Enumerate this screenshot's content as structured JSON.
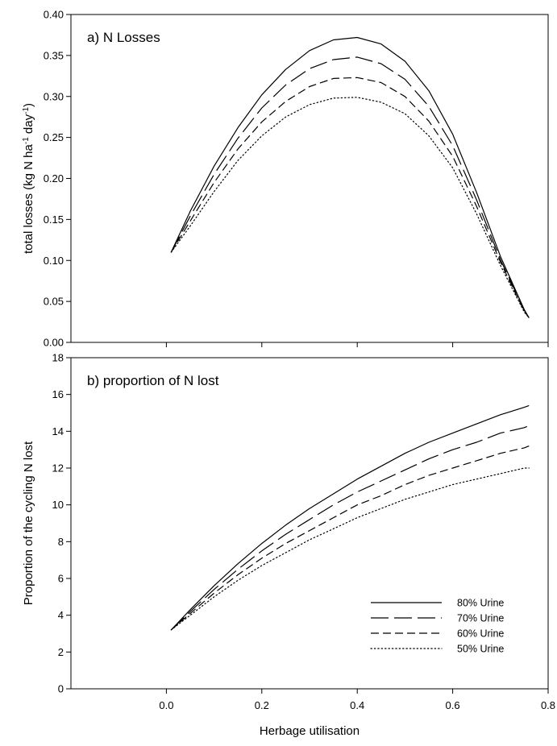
{
  "figure": {
    "xlabel": "Herbage utilisation"
  },
  "chart_data": [
    {
      "type": "line",
      "title": "a) N Losses",
      "xlabel": "Herbage utilisation",
      "ylabel_prefix": "total losses (kg N ha",
      "ylabel_sup1": "-1",
      "ylabel_mid": " day",
      "ylabel_sup2": "-1",
      "ylabel_suffix": ")",
      "xlim": [
        -0.2,
        0.8
      ],
      "ylim": [
        0,
        0.4
      ],
      "xticks": [
        0.0,
        0.2,
        0.4,
        0.6,
        0.8
      ],
      "yticks": [
        0.0,
        0.05,
        0.1,
        0.15,
        0.2,
        0.25,
        0.3,
        0.35,
        0.4
      ],
      "ytick_labels": [
        "0.00",
        "0.05",
        "0.10",
        "0.15",
        "0.20",
        "0.25",
        "0.30",
        "0.35",
        "0.40"
      ],
      "grid": false,
      "x": [
        0.01,
        0.05,
        0.1,
        0.15,
        0.2,
        0.25,
        0.3,
        0.35,
        0.4,
        0.45,
        0.5,
        0.55,
        0.6,
        0.65,
        0.7,
        0.75,
        0.76
      ],
      "series": [
        {
          "name": "80% Urine",
          "style": "solid",
          "values": [
            0.11,
            0.16,
            0.215,
            0.262,
            0.302,
            0.333,
            0.356,
            0.369,
            0.372,
            0.364,
            0.343,
            0.307,
            0.254,
            0.183,
            0.105,
            0.04,
            0.03
          ]
        },
        {
          "name": "70% Urine",
          "style": "longdash",
          "values": [
            0.11,
            0.154,
            0.205,
            0.249,
            0.286,
            0.314,
            0.334,
            0.345,
            0.348,
            0.34,
            0.321,
            0.288,
            0.24,
            0.174,
            0.101,
            0.039,
            0.03
          ]
        },
        {
          "name": "60% Urine",
          "style": "dash",
          "values": [
            0.11,
            0.148,
            0.195,
            0.236,
            0.269,
            0.294,
            0.312,
            0.322,
            0.323,
            0.317,
            0.3,
            0.27,
            0.227,
            0.166,
            0.098,
            0.038,
            0.03
          ]
        },
        {
          "name": "50% Urine",
          "style": "dot",
          "values": [
            0.11,
            0.142,
            0.184,
            0.222,
            0.252,
            0.275,
            0.29,
            0.298,
            0.299,
            0.293,
            0.279,
            0.252,
            0.213,
            0.157,
            0.094,
            0.037,
            0.03
          ]
        }
      ]
    },
    {
      "type": "line",
      "title": "b) proportion of N lost",
      "xlabel": "Herbage utilisation",
      "ylabel": "Proportion of the cycling N lost",
      "xlim": [
        -0.2,
        0.8
      ],
      "ylim": [
        0,
        18
      ],
      "xticks": [
        0.0,
        0.2,
        0.4,
        0.6,
        0.8
      ],
      "xtick_labels": [
        "0.0",
        "0.2",
        "0.4",
        "0.6",
        "0.8"
      ],
      "yticks": [
        0,
        2,
        4,
        6,
        8,
        10,
        12,
        14,
        16,
        18
      ],
      "ytick_labels": [
        "0",
        "2",
        "4",
        "6",
        "8",
        "10",
        "12",
        "14",
        "16",
        "18"
      ],
      "grid": false,
      "legend_position": "bottom-right",
      "x": [
        0.01,
        0.05,
        0.1,
        0.15,
        0.2,
        0.25,
        0.3,
        0.35,
        0.4,
        0.45,
        0.5,
        0.55,
        0.6,
        0.65,
        0.7,
        0.75,
        0.76
      ],
      "series": [
        {
          "name": "80% Urine",
          "style": "solid",
          "values": [
            3.2,
            4.3,
            5.6,
            6.8,
            7.9,
            8.9,
            9.8,
            10.6,
            11.4,
            12.1,
            12.8,
            13.4,
            13.9,
            14.4,
            14.9,
            15.3,
            15.4
          ]
        },
        {
          "name": "70% Urine",
          "style": "longdash",
          "values": [
            3.2,
            4.2,
            5.4,
            6.5,
            7.5,
            8.4,
            9.2,
            10.0,
            10.7,
            11.3,
            11.9,
            12.5,
            13.0,
            13.4,
            13.9,
            14.2,
            14.3
          ]
        },
        {
          "name": "60% Urine",
          "style": "dash",
          "values": [
            3.2,
            4.1,
            5.2,
            6.2,
            7.1,
            7.9,
            8.6,
            9.3,
            10.0,
            10.5,
            11.1,
            11.6,
            12.0,
            12.4,
            12.8,
            13.1,
            13.2
          ]
        },
        {
          "name": "50% Urine",
          "style": "dot",
          "values": [
            3.2,
            4.0,
            5.0,
            5.9,
            6.7,
            7.4,
            8.1,
            8.7,
            9.3,
            9.8,
            10.3,
            10.7,
            11.1,
            11.4,
            11.7,
            12.0,
            12.0
          ]
        }
      ],
      "legend": [
        "80% Urine",
        "70% Urine",
        "60% Urine",
        "50% Urine"
      ]
    }
  ]
}
